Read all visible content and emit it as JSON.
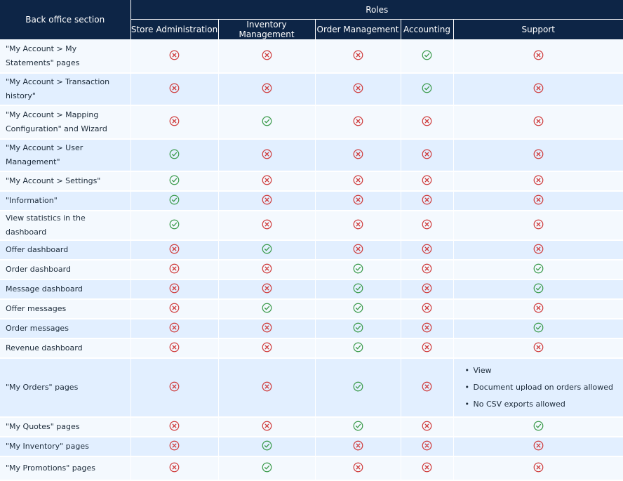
{
  "header": {
    "section": "Back office section",
    "roles": "Roles",
    "columns": [
      "Store Administration",
      "Inventory Management",
      "Order Management",
      "Accounting",
      "Support"
    ]
  },
  "rows": [
    {
      "label": "\"My Account > My Statements\" pages",
      "values": [
        "no",
        "no",
        "no",
        "yes",
        "no"
      ]
    },
    {
      "label": "\"My Account > Transaction history\"",
      "values": [
        "no",
        "no",
        "no",
        "yes",
        "no"
      ]
    },
    {
      "label": "\"My Account > Mapping Configuration\" and Wizard",
      "values": [
        "no",
        "yes",
        "no",
        "no",
        "no"
      ]
    },
    {
      "label": "\"My Account > User Management\"",
      "values": [
        "yes",
        "no",
        "no",
        "no",
        "no"
      ]
    },
    {
      "label": "\"My Account > Settings\"",
      "values": [
        "yes",
        "no",
        "no",
        "no",
        "no"
      ]
    },
    {
      "label": "\"Information\"",
      "values": [
        "yes",
        "no",
        "no",
        "no",
        "no"
      ]
    },
    {
      "label": "View statistics in the dashboard",
      "values": [
        "yes",
        "no",
        "no",
        "no",
        "no"
      ]
    },
    {
      "label": "Offer dashboard",
      "values": [
        "no",
        "yes",
        "no",
        "no",
        "no"
      ]
    },
    {
      "label": "Order dashboard",
      "values": [
        "no",
        "no",
        "yes",
        "no",
        "yes"
      ]
    },
    {
      "label": "Message dashboard",
      "values": [
        "no",
        "no",
        "yes",
        "no",
        "yes"
      ]
    },
    {
      "label": "Offer messages",
      "values": [
        "no",
        "yes",
        "yes",
        "no",
        "no"
      ]
    },
    {
      "label": "Order messages",
      "values": [
        "no",
        "no",
        "yes",
        "no",
        "yes"
      ]
    },
    {
      "label": "Revenue dashboard",
      "values": [
        "no",
        "no",
        "yes",
        "no",
        "no"
      ]
    },
    {
      "label": "\"My Orders\" pages",
      "values": [
        "no",
        "no",
        "yes",
        "no",
        "list"
      ],
      "support_notes": [
        "View",
        "Document upload on orders allowed",
        "No CSV exports allowed"
      ]
    },
    {
      "label": "\"My Quotes\" pages",
      "values": [
        "no",
        "no",
        "yes",
        "no",
        "yes"
      ]
    },
    {
      "label": "\"My Inventory\" pages",
      "values": [
        "no",
        "yes",
        "no",
        "no",
        "no"
      ]
    },
    {
      "label": "\"My Promotions\" pages",
      "values": [
        "no",
        "yes",
        "no",
        "no",
        "no"
      ]
    }
  ],
  "colors": {
    "header_bg": "#0d2546",
    "allowed": "#3a9a4a",
    "denied": "#cf3b3b",
    "row_light": "#f4f9fe",
    "row_blue": "#e2efff"
  },
  "icons": {
    "yes": "check-circle-icon",
    "no": "x-circle-icon"
  }
}
